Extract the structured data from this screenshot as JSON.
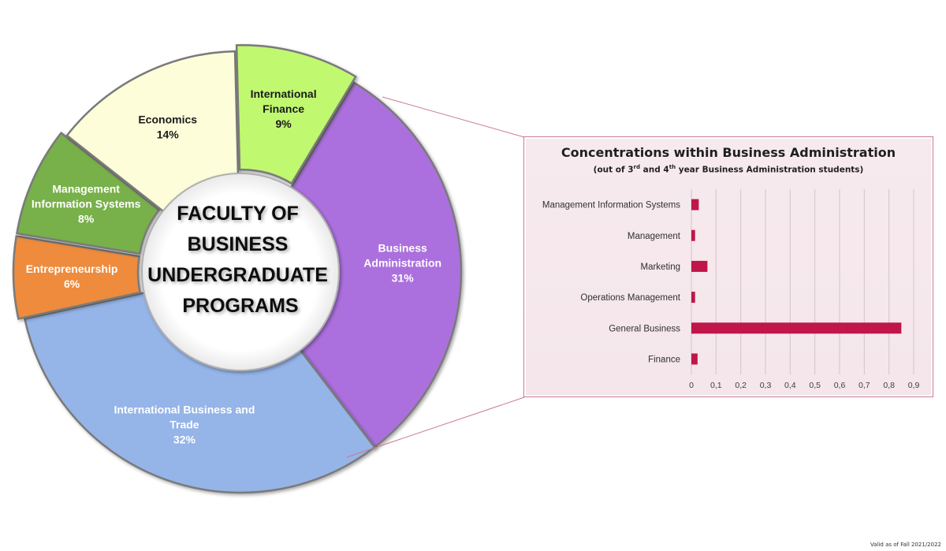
{
  "footer_note": "Valid as of Fall 2021/2022",
  "colors": {
    "accent": "#c0164a",
    "panel_border": "#c97b90",
    "panel_bg": "#f7eaee"
  },
  "chart_data": [
    {
      "type": "pie",
      "title": "FACULTY OF BUSINESS UNDERGRADUATE PROGRAMS",
      "title_lines": [
        "FACULTY OF",
        "BUSINESS",
        "UNDERGRADUATE",
        "PROGRAMS"
      ],
      "slices": [
        {
          "label_lines": [
            "Business",
            "Administration"
          ],
          "value": 31,
          "pct": "31%",
          "color": "#ab6fdd",
          "label_color": "#ffffff"
        },
        {
          "label_lines": [
            "International Business and",
            "Trade"
          ],
          "value": 32,
          "pct": "32%",
          "color": "#95b4e8",
          "label_color": "#ffffff"
        },
        {
          "label_lines": [
            "Entrepreneurship"
          ],
          "value": 6,
          "pct": "6%",
          "color": "#ee8b3c",
          "label_color": "#ffffff"
        },
        {
          "label_lines": [
            "Management",
            "Information Systems"
          ],
          "value": 8,
          "pct": "8%",
          "color": "#78b04a",
          "label_color": "#ffffff"
        },
        {
          "label_lines": [
            "Economics"
          ],
          "value": 14,
          "pct": "14%",
          "color": "#fdfed9",
          "label_color": "#1a1a1a"
        },
        {
          "label_lines": [
            "International",
            "Finance"
          ],
          "value": 9,
          "pct": "9%",
          "color": "#c0f870",
          "label_color": "#1a1a1a"
        }
      ]
    },
    {
      "type": "bar",
      "orientation": "horizontal",
      "title": "Concentrations within Business Administration",
      "subtitle": {
        "prefix": "(out of 3",
        "sup1": "rd",
        "middle": " and 4",
        "sup2": "th",
        "suffix": " year Business Administration students)"
      },
      "categories": [
        "Management Information Systems",
        "Management",
        "Marketing",
        "Operations Management",
        "General Business",
        "Finance"
      ],
      "values": [
        0.03,
        0.015,
        0.065,
        0.015,
        0.85,
        0.025
      ],
      "bar_color": "#c0164a",
      "xlim": [
        0,
        0.9
      ],
      "xticks": [
        0,
        0.1,
        0.2,
        0.3,
        0.4,
        0.5,
        0.6,
        0.7,
        0.8,
        0.9
      ],
      "xtick_labels": [
        "0",
        "0,1",
        "0,2",
        "0,3",
        "0,4",
        "0,5",
        "0,6",
        "0,7",
        "0,8",
        "0,9"
      ],
      "grid": true,
      "legend": "none"
    }
  ]
}
